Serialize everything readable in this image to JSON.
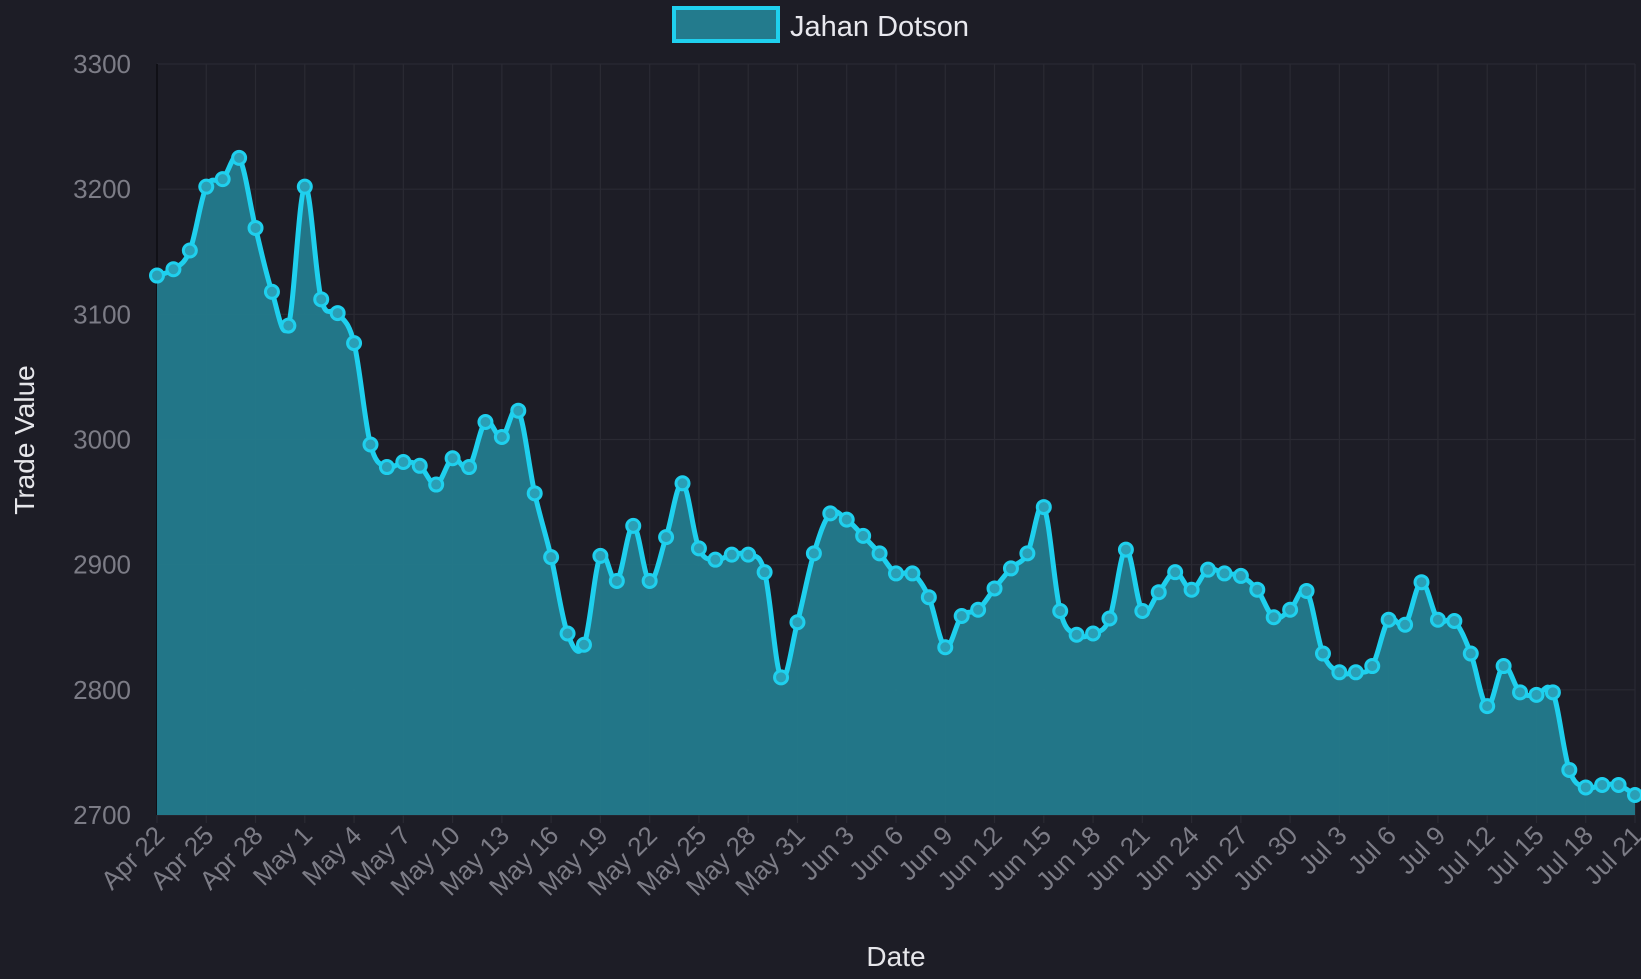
{
  "chart_data": {
    "type": "area",
    "xlabel": "Date",
    "ylabel": "Trade Value",
    "ylim": [
      2700,
      3300
    ],
    "yticks": [
      2700,
      2800,
      2900,
      3000,
      3100,
      3200,
      3300
    ],
    "grid": true,
    "legend_position": "top-center",
    "x_tick_labels": [
      "Apr 22",
      "Apr 25",
      "Apr 28",
      "May 1",
      "May 4",
      "May 7",
      "May 10",
      "May 13",
      "May 16",
      "May 19",
      "May 22",
      "May 25",
      "May 28",
      "May 31",
      "Jun 3",
      "Jun 6",
      "Jun 9",
      "Jun 12",
      "Jun 15",
      "Jun 18",
      "Jun 21",
      "Jun 24",
      "Jun 27",
      "Jun 30",
      "Jul 3",
      "Jul 6",
      "Jul 9",
      "Jul 12",
      "Jul 15",
      "Jul 18",
      "Jul 21"
    ],
    "colors": {
      "background": "#1d1d26",
      "line": "#1fd0ee",
      "fill": "#237b8d",
      "grid": "#2a2a33",
      "tick_text": "#7c7c86",
      "title_text": "#e6e6ea"
    },
    "series": [
      {
        "name": "Jahan Dotson",
        "x_dates": [
          "Apr 22",
          "Apr 23",
          "Apr 24",
          "Apr 25",
          "Apr 26",
          "Apr 27",
          "Apr 28",
          "Apr 29",
          "Apr 30",
          "May 1",
          "May 2",
          "May 3",
          "May 4",
          "May 5",
          "May 6",
          "May 7",
          "May 8",
          "May 9",
          "May 10",
          "May 11",
          "May 12",
          "May 13",
          "May 14",
          "May 15",
          "May 16",
          "May 17",
          "May 18",
          "May 19",
          "May 20",
          "May 21",
          "May 22",
          "May 23",
          "May 24",
          "May 25",
          "May 26",
          "May 27",
          "May 28",
          "May 29",
          "May 30",
          "May 31",
          "Jun 1",
          "Jun 2",
          "Jun 3",
          "Jun 4",
          "Jun 5",
          "Jun 6",
          "Jun 7",
          "Jun 8",
          "Jun 9",
          "Jun 10",
          "Jun 11",
          "Jun 12",
          "Jun 13",
          "Jun 14",
          "Jun 15",
          "Jun 16",
          "Jun 17",
          "Jun 18",
          "Jun 19",
          "Jun 20",
          "Jun 21",
          "Jun 22",
          "Jun 23",
          "Jun 24",
          "Jun 25",
          "Jun 26",
          "Jun 27",
          "Jun 28",
          "Jun 29",
          "Jun 30",
          "Jul 1",
          "Jul 2",
          "Jul 3",
          "Jul 4",
          "Jul 5",
          "Jul 6",
          "Jul 7",
          "Jul 8",
          "Jul 9",
          "Jul 10",
          "Jul 11",
          "Jul 12",
          "Jul 13",
          "Jul 14",
          "Jul 15",
          "Jul 16",
          "Jul 17",
          "Jul 18",
          "Jul 19",
          "Jul 20",
          "Jul 21"
        ],
        "values": [
          3131,
          3136,
          3151,
          3202,
          3208,
          3225,
          3169,
          3118,
          3091,
          3202,
          3112,
          3101,
          3077,
          2996,
          2978,
          2982,
          2979,
          2964,
          2985,
          2978,
          3014,
          3002,
          3023,
          2957,
          2906,
          2845,
          2836,
          2907,
          2887,
          2931,
          2887,
          2922,
          2965,
          2913,
          2904,
          2908,
          2908,
          2894,
          2810,
          2854,
          2909,
          2941,
          2936,
          2923,
          2909,
          2893,
          2893,
          2874,
          2834,
          2859,
          2864,
          2881,
          2897,
          2909,
          2946,
          2863,
          2844,
          2845,
          2857,
          2912,
          2863,
          2878,
          2894,
          2880,
          2896,
          2893,
          2891,
          2880,
          2858,
          2864,
          2879,
          2829,
          2814,
          2814,
          2819,
          2856,
          2852,
          2886,
          2856,
          2855,
          2829,
          2787,
          2819,
          2798,
          2796,
          2798,
          2736,
          2722,
          2724,
          2724,
          2716
        ]
      }
    ]
  }
}
